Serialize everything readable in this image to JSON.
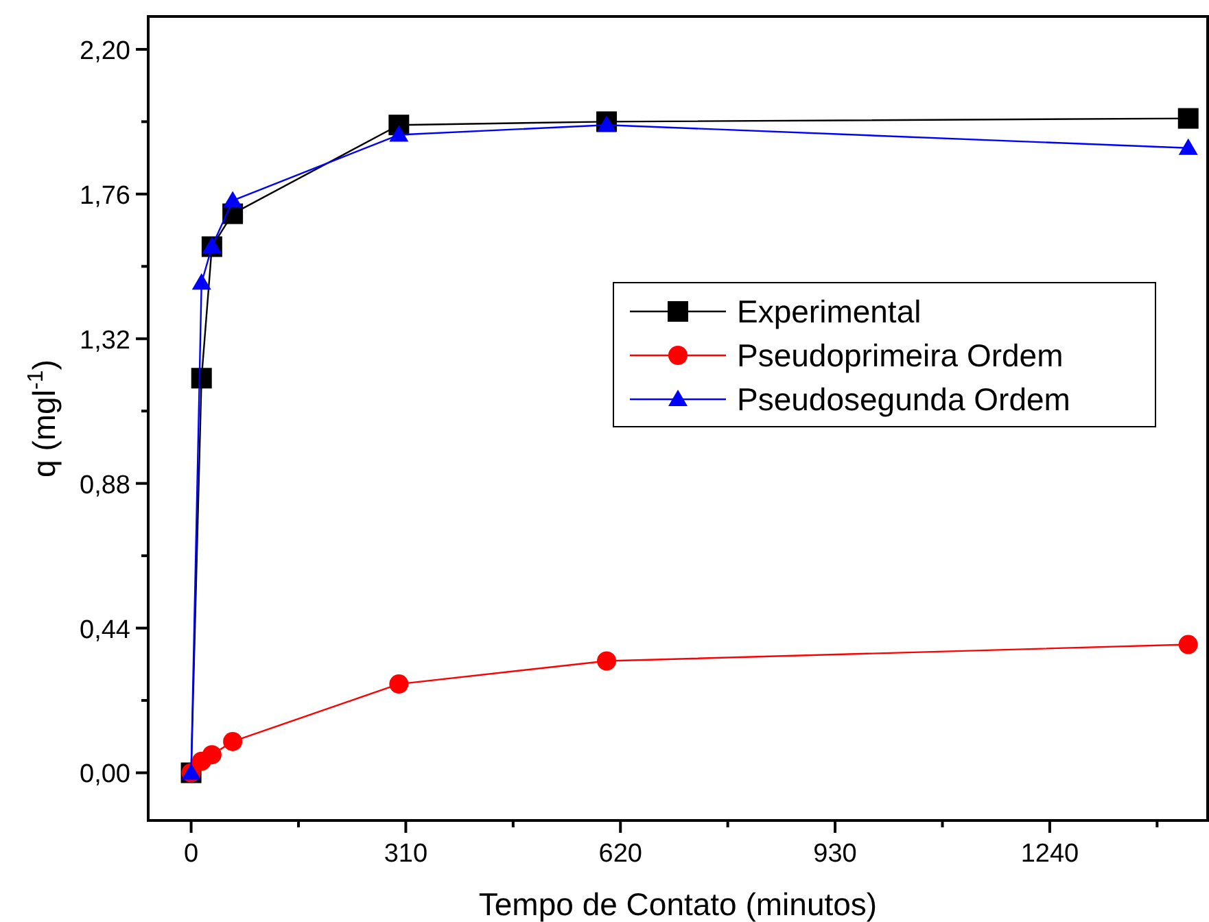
{
  "chart_data": {
    "type": "line",
    "xlabel": "Tempo de Contato (minutos)",
    "ylabel": "q (mgl$^{-1}$)",
    "x": [
      0,
      15,
      30,
      60,
      300,
      600,
      1440
    ],
    "xlim": [
      -62,
      1468
    ],
    "ylim": [
      -0.145,
      2.3
    ],
    "xticks": [
      0,
      {
        "value": 155,
        "label": null
      },
      310,
      {
        "value": 465,
        "label": null
      },
      620,
      {
        "value": 775,
        "label": null
      },
      930,
      {
        "value": 1085,
        "label": null
      },
      1240,
      {
        "value": 1395,
        "label": null
      }
    ],
    "yticks": [
      {
        "value": 0,
        "label": "0,00"
      },
      {
        "value": 0.22,
        "label": null
      },
      {
        "value": 0.44,
        "label": "0,44"
      },
      {
        "value": 0.66,
        "label": null
      },
      {
        "value": 0.88,
        "label": "0,88"
      },
      {
        "value": 1.1,
        "label": null
      },
      {
        "value": 1.32,
        "label": "1,32"
      },
      {
        "value": 1.54,
        "label": null
      },
      {
        "value": 1.76,
        "label": "1,76"
      },
      {
        "value": 1.98,
        "label": null
      },
      {
        "value": 2.2,
        "label": "2,20"
      }
    ],
    "grid": false,
    "legend": "right",
    "series": [
      {
        "name": "Experimental",
        "color": "#000000",
        "marker": "square",
        "values": [
          0,
          1.2,
          1.6,
          1.7,
          1.97,
          1.98,
          1.99
        ]
      },
      {
        "name": "Pseudoprimeira Ordem",
        "color": "#ff0000",
        "marker": "circle",
        "values": [
          0,
          0.035,
          0.055,
          0.095,
          0.27,
          0.34,
          0.39
        ]
      },
      {
        "name": "Pseudosegunda Ordem",
        "color": "#0000ff",
        "marker": "triangle",
        "values": [
          0,
          1.49,
          1.6,
          1.74,
          1.94,
          1.97,
          1.9
        ]
      }
    ]
  }
}
